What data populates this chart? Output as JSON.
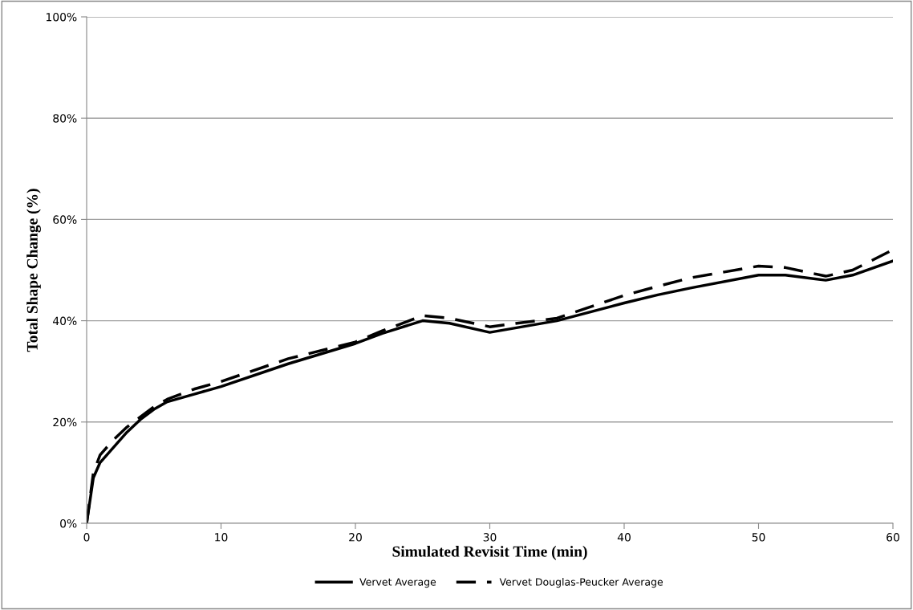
{
  "chart_data": {
    "type": "line",
    "xlabel": "Simulated Revisit Time (min)",
    "ylabel": "Total Shape Change (%)",
    "xlim": [
      0,
      60
    ],
    "xticks": [
      0,
      10,
      20,
      30,
      40,
      50,
      60
    ],
    "ylim": [
      0,
      100
    ],
    "yticks": [
      {
        "value": 0,
        "label": "0%"
      },
      {
        "value": 20,
        "label": "20%"
      },
      {
        "value": 40,
        "label": "40%"
      },
      {
        "value": 60,
        "label": "60%"
      },
      {
        "value": 80,
        "label": "80%"
      },
      {
        "value": 100,
        "label": "100%"
      }
    ],
    "grid": "y",
    "legend": "bottom",
    "marker": "none",
    "x": [
      0,
      0.5,
      1,
      2,
      3,
      4,
      5,
      6,
      8,
      10,
      15,
      20,
      22,
      25,
      27,
      30,
      35,
      40,
      42.5,
      45,
      50,
      52,
      55,
      57,
      60
    ],
    "series": [
      {
        "name": "Vervet Average",
        "color": "#000000",
        "line_style": "solid",
        "values": [
          0,
          9,
          12,
          15,
          18,
          20.5,
          22.5,
          24,
          25.5,
          27,
          31.5,
          35.5,
          37.5,
          40,
          39.5,
          37.7,
          40,
          43.5,
          45.1,
          46.5,
          49,
          49,
          48,
          49,
          51.8
        ]
      },
      {
        "name": "Vervet Douglas-Peucker Average",
        "color": "#000000",
        "line_style": "dashed",
        "values": [
          0,
          10,
          13.5,
          16.5,
          19,
          21,
          23,
          24.5,
          26.5,
          28,
          32.5,
          35.8,
          38,
          41,
          40.5,
          38.8,
          40.5,
          45,
          46.8,
          48.5,
          50.8,
          50.5,
          48.8,
          50,
          54
        ]
      }
    ]
  }
}
